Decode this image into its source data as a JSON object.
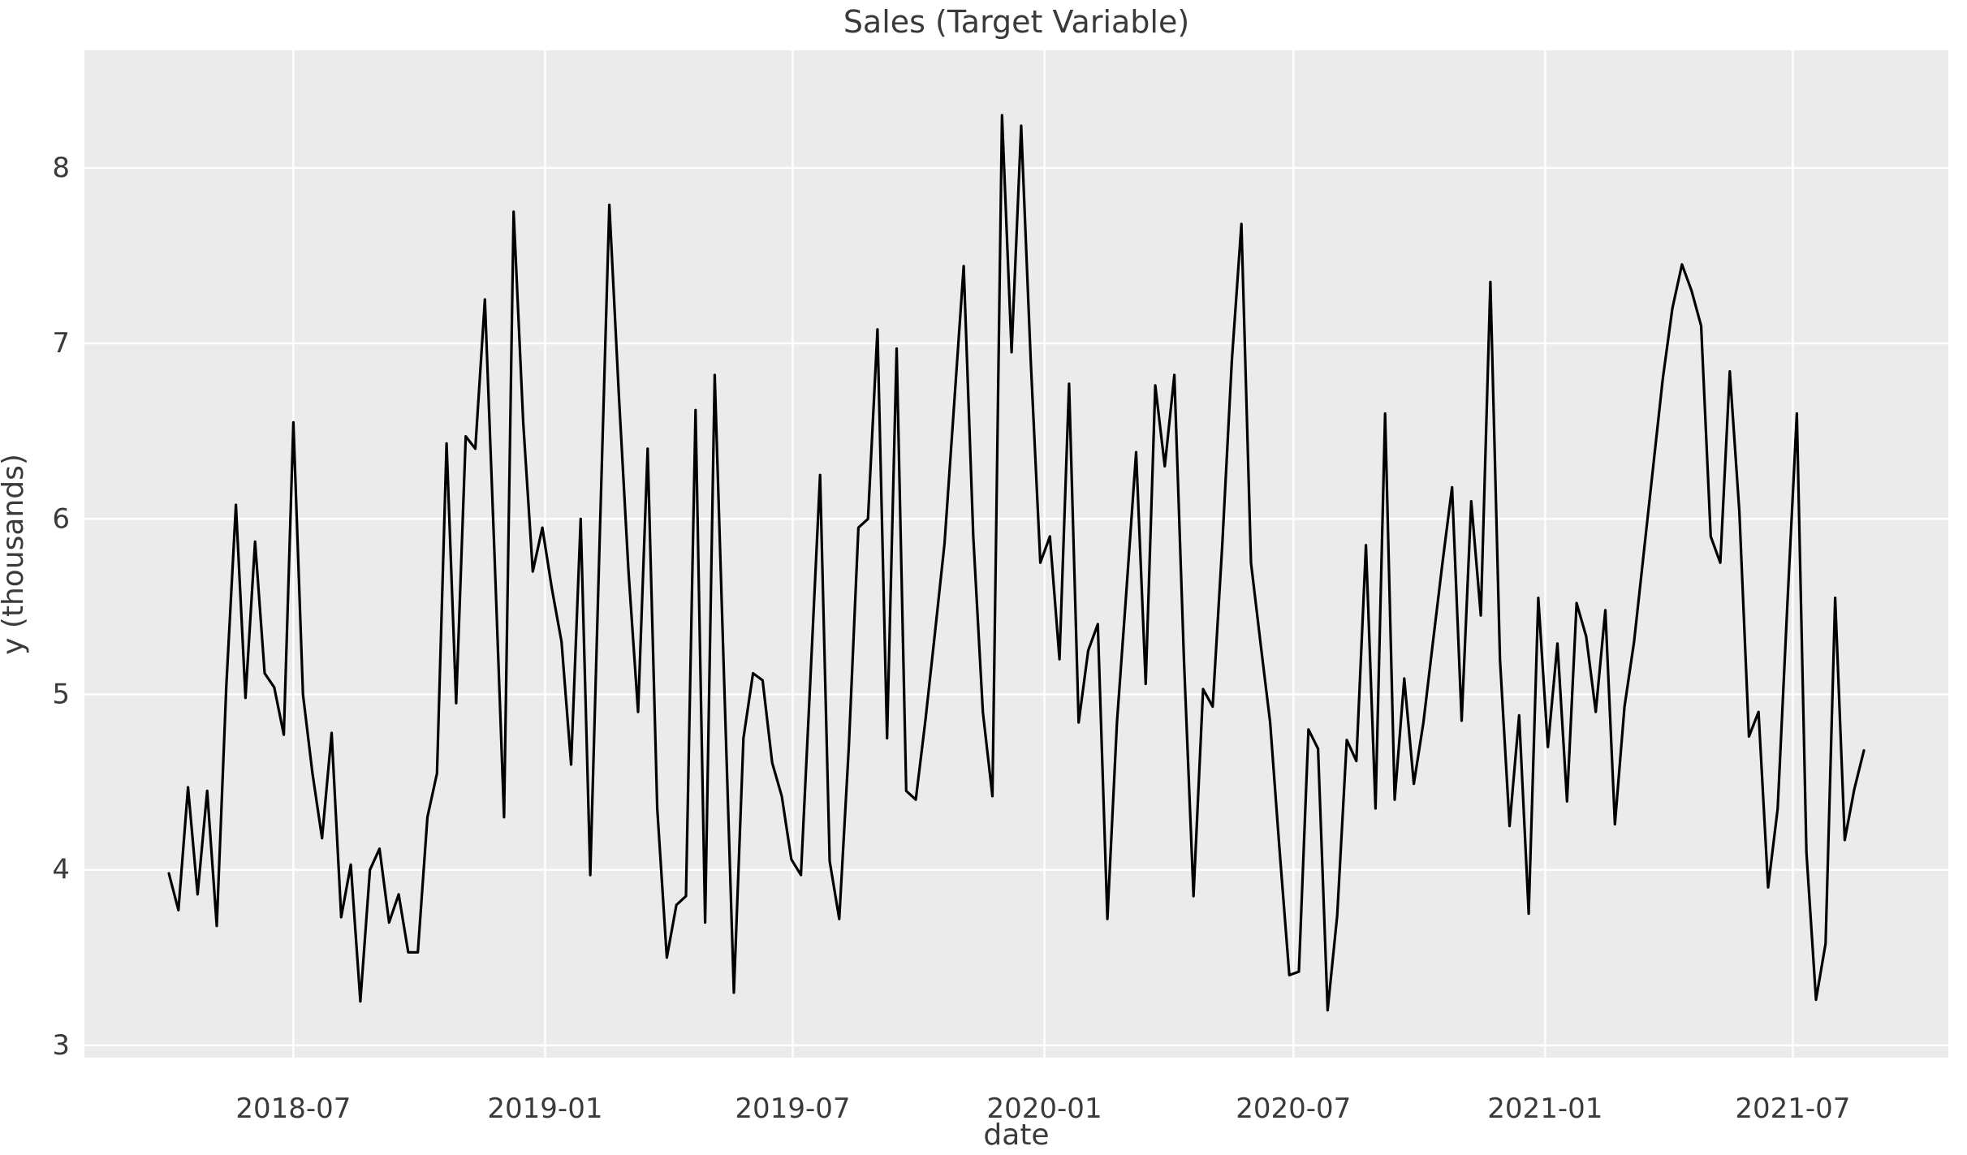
{
  "chart_data": {
    "type": "line",
    "title": "Sales (Target Variable)",
    "xlabel": "date",
    "ylabel": "y (thousands)",
    "legend": "none",
    "grid": "on",
    "x_start_date": "2018-04-01",
    "x_step_days": 7,
    "x_ticks": [
      {
        "date": "2018-07-01",
        "label": "2018-07"
      },
      {
        "date": "2019-01-01",
        "label": "2019-01"
      },
      {
        "date": "2019-07-01",
        "label": "2019-07"
      },
      {
        "date": "2020-01-01",
        "label": "2020-01"
      },
      {
        "date": "2020-07-01",
        "label": "2020-07"
      },
      {
        "date": "2021-01-01",
        "label": "2021-01"
      },
      {
        "date": "2021-07-01",
        "label": "2021-07"
      }
    ],
    "y_ticks": [
      3,
      4,
      5,
      6,
      7,
      8
    ],
    "ylim": [
      2.93,
      8.67
    ],
    "series": [
      {
        "name": "Sales",
        "color": "#000000",
        "values": [
          3.98,
          3.77,
          4.47,
          3.86,
          4.45,
          3.68,
          5.05,
          6.08,
          4.98,
          5.87,
          5.12,
          5.04,
          4.77,
          6.55,
          5.0,
          4.55,
          4.18,
          4.78,
          3.73,
          4.03,
          3.25,
          4.0,
          4.12,
          3.7,
          3.86,
          3.53,
          3.53,
          4.3,
          4.55,
          6.43,
          4.95,
          6.47,
          6.4,
          7.25,
          5.8,
          4.3,
          7.75,
          6.55,
          5.7,
          5.95,
          5.6,
          5.3,
          4.6,
          6.0,
          3.97,
          5.9,
          7.79,
          6.7,
          5.7,
          4.9,
          6.4,
          4.35,
          3.5,
          3.8,
          3.85,
          6.62,
          3.7,
          6.82,
          5.05,
          3.3,
          4.75,
          5.12,
          5.08,
          4.61,
          4.42,
          4.06,
          3.97,
          5.1,
          6.25,
          4.05,
          3.72,
          4.7,
          5.95,
          6.0,
          7.08,
          4.75,
          6.97,
          4.45,
          4.4,
          4.85,
          5.35,
          5.86,
          6.65,
          7.44,
          5.9,
          4.9,
          4.42,
          8.3,
          6.95,
          8.24,
          6.9,
          5.75,
          5.9,
          5.2,
          6.77,
          4.84,
          5.25,
          5.4,
          3.72,
          4.84,
          5.6,
          6.38,
          5.06,
          6.76,
          6.3,
          6.82,
          5.2,
          3.85,
          5.03,
          4.93,
          5.85,
          6.9,
          7.68,
          5.75,
          5.29,
          4.84,
          4.1,
          3.4,
          3.42,
          4.8,
          4.69,
          3.2,
          3.74,
          4.74,
          4.62,
          5.85,
          4.35,
          6.6,
          4.4,
          5.09,
          4.49,
          4.84,
          5.3,
          5.75,
          6.18,
          4.85,
          6.1,
          5.45,
          7.35,
          5.2,
          4.25,
          4.88,
          3.75,
          5.55,
          4.7,
          5.29,
          4.39,
          5.52,
          5.33,
          4.9,
          5.48,
          4.26,
          4.93,
          5.3,
          5.8,
          6.3,
          6.8,
          7.2,
          7.45,
          7.3,
          7.1,
          5.9,
          5.75,
          6.84,
          6.04,
          4.76,
          4.9,
          3.9,
          4.35,
          5.5,
          6.6,
          4.1,
          3.26,
          3.58,
          5.55,
          4.17,
          4.46,
          4.68
        ]
      }
    ],
    "colors": {
      "figure_bg": "#ffffff",
      "axes_bg": "#ebebeb",
      "gridline": "#ffffff",
      "line": "#000000",
      "text": "#3a3a3a"
    }
  }
}
